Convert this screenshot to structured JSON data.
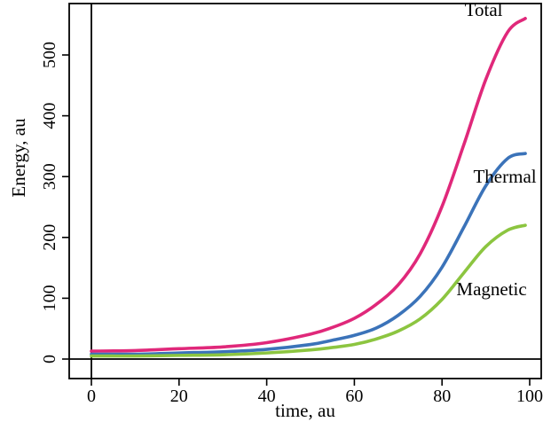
{
  "chart_data": {
    "type": "line",
    "title": "",
    "xlabel": "time, au",
    "ylabel": "Energy, au",
    "xlim": [
      -5,
      102
    ],
    "ylim": [
      -5,
      585
    ],
    "x_ticks": [
      0,
      20,
      40,
      60,
      80,
      100
    ],
    "y_ticks": [
      0,
      100,
      200,
      300,
      400,
      500
    ],
    "x_tick_labels": [
      "0",
      "20",
      "40",
      "60",
      "80",
      "100"
    ],
    "y_tick_labels": [
      "0",
      "100",
      "200",
      "300",
      "400",
      "500"
    ],
    "grid": false,
    "legend": "none",
    "x": [
      0,
      10,
      20,
      30,
      40,
      50,
      55,
      60,
      65,
      70,
      75,
      80,
      85,
      90,
      95,
      99
    ],
    "series": [
      {
        "name": "Total",
        "color": "#e0287a",
        "values": [
          13,
          14,
          17,
          20,
          27,
          41,
          52,
          67,
          90,
          122,
          173,
          251,
          353,
          460,
          538,
          560
        ]
      },
      {
        "name": "Thermal",
        "color": "#3b73b9",
        "values": [
          8,
          8,
          10,
          12,
          16,
          24,
          31,
          39,
          51,
          72,
          103,
          151,
          217,
          285,
          330,
          338
        ]
      },
      {
        "name": "Magnetic",
        "color": "#8cc540",
        "values": [
          5,
          5,
          6,
          7,
          10,
          15,
          19,
          24,
          33,
          46,
          66,
          98,
          142,
          185,
          212,
          220
        ]
      }
    ]
  }
}
